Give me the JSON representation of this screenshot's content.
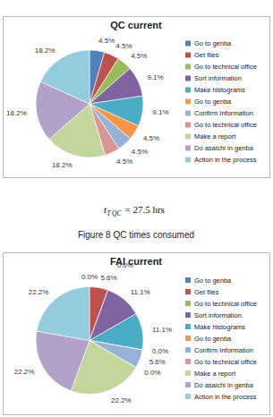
{
  "chart_data": [
    {
      "type": "pie",
      "title": "QC current",
      "categories": [
        "Go to genba",
        "Get files",
        "Go to technical office",
        "Sort information",
        "Make histograms",
        "Go to genba",
        "Confirm Information",
        "Go to technical office",
        "Make a report",
        "Do asaichi in genba",
        "Action in the process"
      ],
      "values": [
        4.5,
        4.5,
        4.5,
        9.1,
        9.1,
        4.5,
        4.5,
        4.5,
        18.2,
        18.2,
        18.2
      ],
      "value_labels": [
        "4.5%",
        "4.5%",
        "4.5%",
        "9.1%",
        "9.1%",
        "4.5%",
        "4.5%",
        "4.5%",
        "18.2%",
        "18.2%",
        "18.2%"
      ],
      "colors": [
        "#4f81bd",
        "#c0504d",
        "#9bbb59",
        "#8064a2",
        "#4bacc6",
        "#f79646",
        "#95b3d7",
        "#d99694",
        "#c3d69b",
        "#b3a2c7",
        "#93cddd"
      ],
      "data_labels": true,
      "legend": "right"
    },
    {
      "type": "pie",
      "title": "FAI current",
      "categories": [
        "Go to genba",
        "Get files",
        "Go to technical office",
        "Sort information",
        "Make histograms",
        "Go to genba",
        "Confirm Information",
        "Go to technical office",
        "Make a report",
        "Do asaichi in genba",
        "Action in the process"
      ],
      "values": [
        0,
        5.6,
        0,
        11.1,
        11.1,
        0,
        5.6,
        0,
        22.2,
        22.2,
        22.2
      ],
      "value_labels": [
        "0.0%",
        "5.6%",
        "0.0%",
        "11.1%",
        "11.1%",
        "0.0%",
        "5.6%",
        "0.0%",
        "22.2%",
        "22.2%",
        "22.2%"
      ],
      "colors": [
        "#4f81bd",
        "#c0504d",
        "#9bbb59",
        "#8064a2",
        "#4bacc6",
        "#f79646",
        "#95b3d7",
        "#d99694",
        "#c3d69b",
        "#b3a2c7",
        "#93cddd"
      ],
      "data_labels": true,
      "legend": "right"
    }
  ],
  "captions": {
    "formula": {
      "symbol": "t",
      "subscript": "T QC",
      "text": "= 27.5 hrs"
    },
    "figure": "Figure 8 QC times consumed"
  }
}
